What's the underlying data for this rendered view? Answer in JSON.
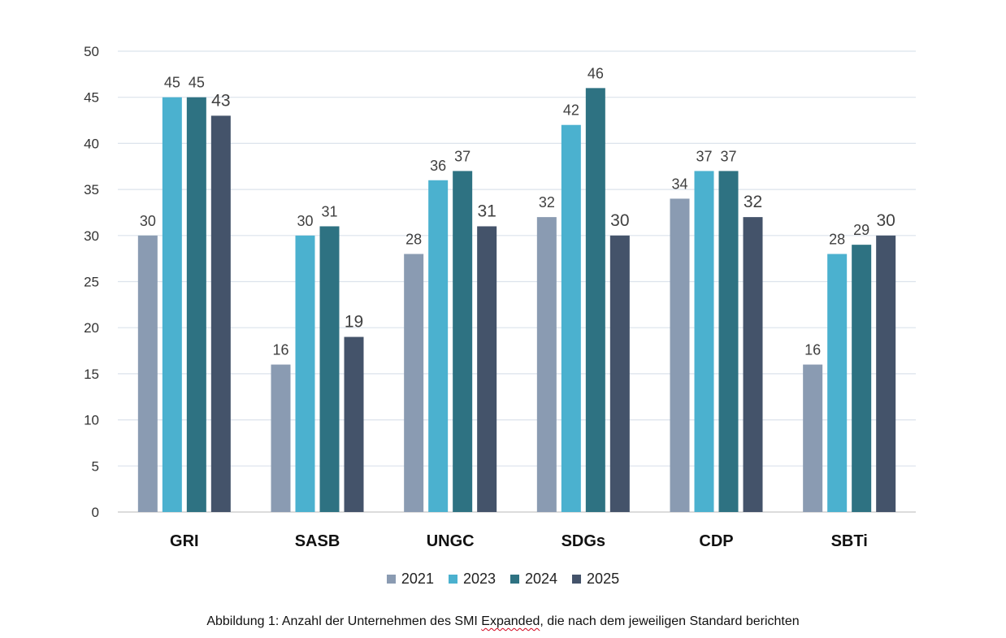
{
  "chart_data": {
    "type": "bar",
    "categories": [
      "GRI",
      "SASB",
      "UNGC",
      "SDGs",
      "CDP",
      "SBTi"
    ],
    "series": [
      {
        "name": "2021",
        "color": "#8a9bb2",
        "values": [
          30,
          16,
          28,
          32,
          34,
          16
        ]
      },
      {
        "name": "2023",
        "color": "#4bb1cf",
        "values": [
          45,
          30,
          36,
          42,
          37,
          28
        ]
      },
      {
        "name": "2024",
        "color": "#2e7282",
        "values": [
          45,
          31,
          37,
          46,
          37,
          29
        ]
      },
      {
        "name": "2025",
        "color": "#44536a",
        "values": [
          43,
          19,
          31,
          30,
          32,
          30
        ]
      }
    ],
    "yticks": [
      "0",
      "5",
      "10",
      "15",
      "20",
      "25",
      "30",
      "35",
      "40",
      "45",
      "50"
    ],
    "ylim": [
      0,
      50
    ],
    "grid": true,
    "legend_position": "bottom"
  },
  "caption": {
    "before": "Abbildung 1: Anzahl der Unternehmen des SMI ",
    "marked": "Expanded",
    "after": ", die nach dem jeweiligen Standard berichten"
  }
}
